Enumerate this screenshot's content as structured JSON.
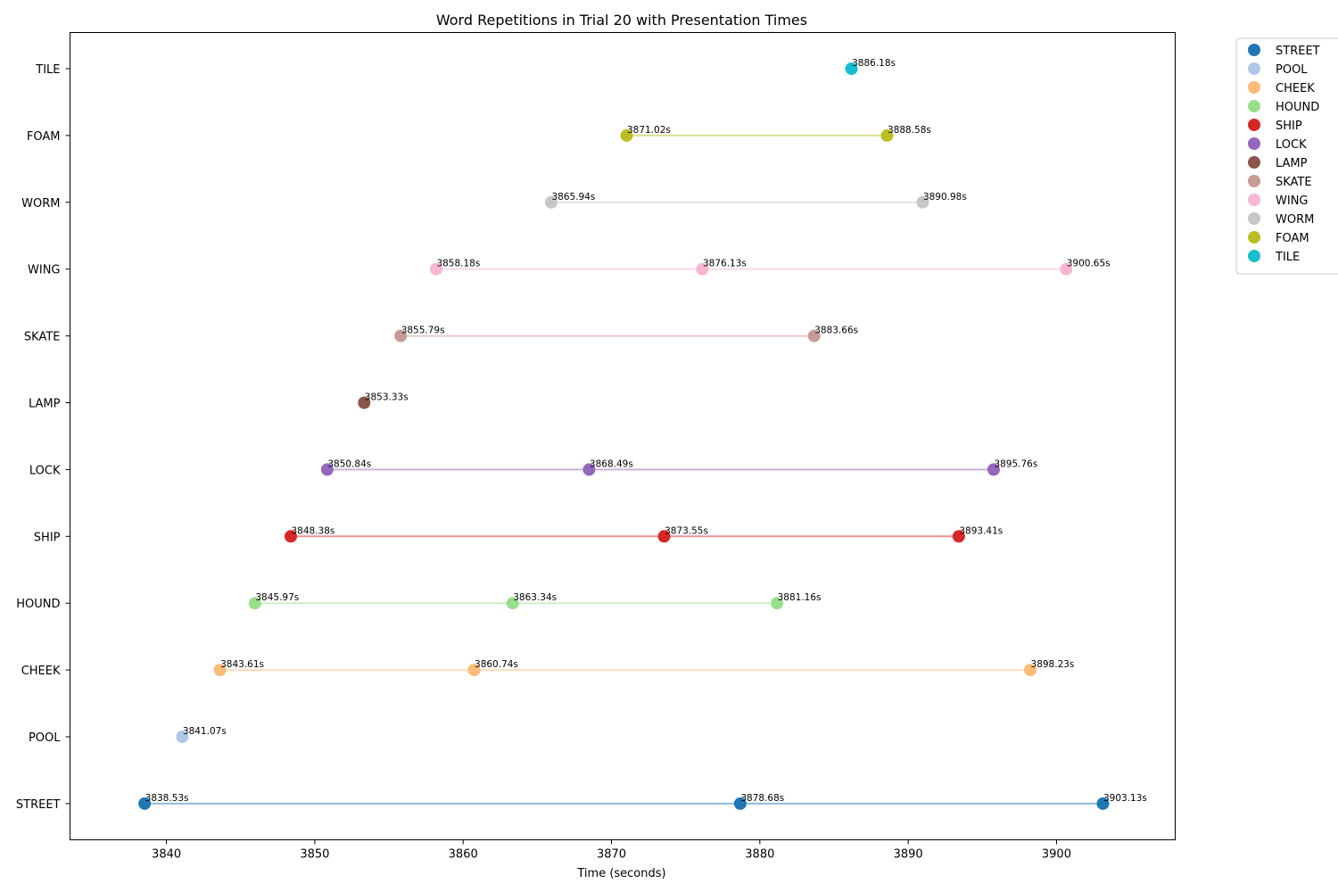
{
  "chart_data": {
    "type": "scatter",
    "title": "Word Repetitions in Trial 20 with Presentation Times",
    "xlabel": "Time (seconds)",
    "ylabel": "",
    "xlim": [
      3833.5,
      3908.0
    ],
    "xticks": [
      3840,
      3850,
      3860,
      3870,
      3880,
      3890,
      3900
    ],
    "legend_position": "outside-top-right",
    "label_suffix": "s",
    "series": [
      {
        "name": "STREET",
        "color": "#1f77b4",
        "line_color": "#8fbbd9",
        "times": [
          3838.53,
          3878.68,
          3903.13
        ]
      },
      {
        "name": "POOL",
        "color": "#aec7e8",
        "line_color": "#d6e3f3",
        "times": [
          3841.07
        ]
      },
      {
        "name": "CHEEK",
        "color": "#ffbb78",
        "line_color": "#ffddbb",
        "times": [
          3843.61,
          3860.74,
          3898.23
        ]
      },
      {
        "name": "HOUND",
        "color": "#98df8a",
        "line_color": "#cbefc4",
        "times": [
          3845.97,
          3863.34,
          3881.16
        ]
      },
      {
        "name": "SHIP",
        "color": "#d62728",
        "line_color": "#ea9393",
        "times": [
          3848.38,
          3873.55,
          3893.41
        ]
      },
      {
        "name": "LOCK",
        "color": "#9467bd",
        "line_color": "#c9b3de",
        "times": [
          3850.84,
          3868.49,
          3895.76
        ]
      },
      {
        "name": "LAMP",
        "color": "#8c564b",
        "line_color": "#c5aaa5",
        "times": [
          3853.33
        ]
      },
      {
        "name": "SKATE",
        "color": "#c49c94",
        "line_color": "#e1cdc9",
        "times": [
          3855.79,
          3883.66
        ]
      },
      {
        "name": "WING",
        "color": "#f7b6d2",
        "line_color": "#fbdae8",
        "times": [
          3858.18,
          3876.13,
          3900.65
        ]
      },
      {
        "name": "WORM",
        "color": "#c7c7c7",
        "line_color": "#e3e3e3",
        "times": [
          3865.94,
          3890.98
        ]
      },
      {
        "name": "FOAM",
        "color": "#bcbd22",
        "line_color": "#ddde90",
        "times": [
          3871.02,
          3888.58
        ]
      },
      {
        "name": "TILE",
        "color": "#17becf",
        "line_color": "#8bdee7",
        "times": [
          3886.18
        ]
      }
    ]
  }
}
